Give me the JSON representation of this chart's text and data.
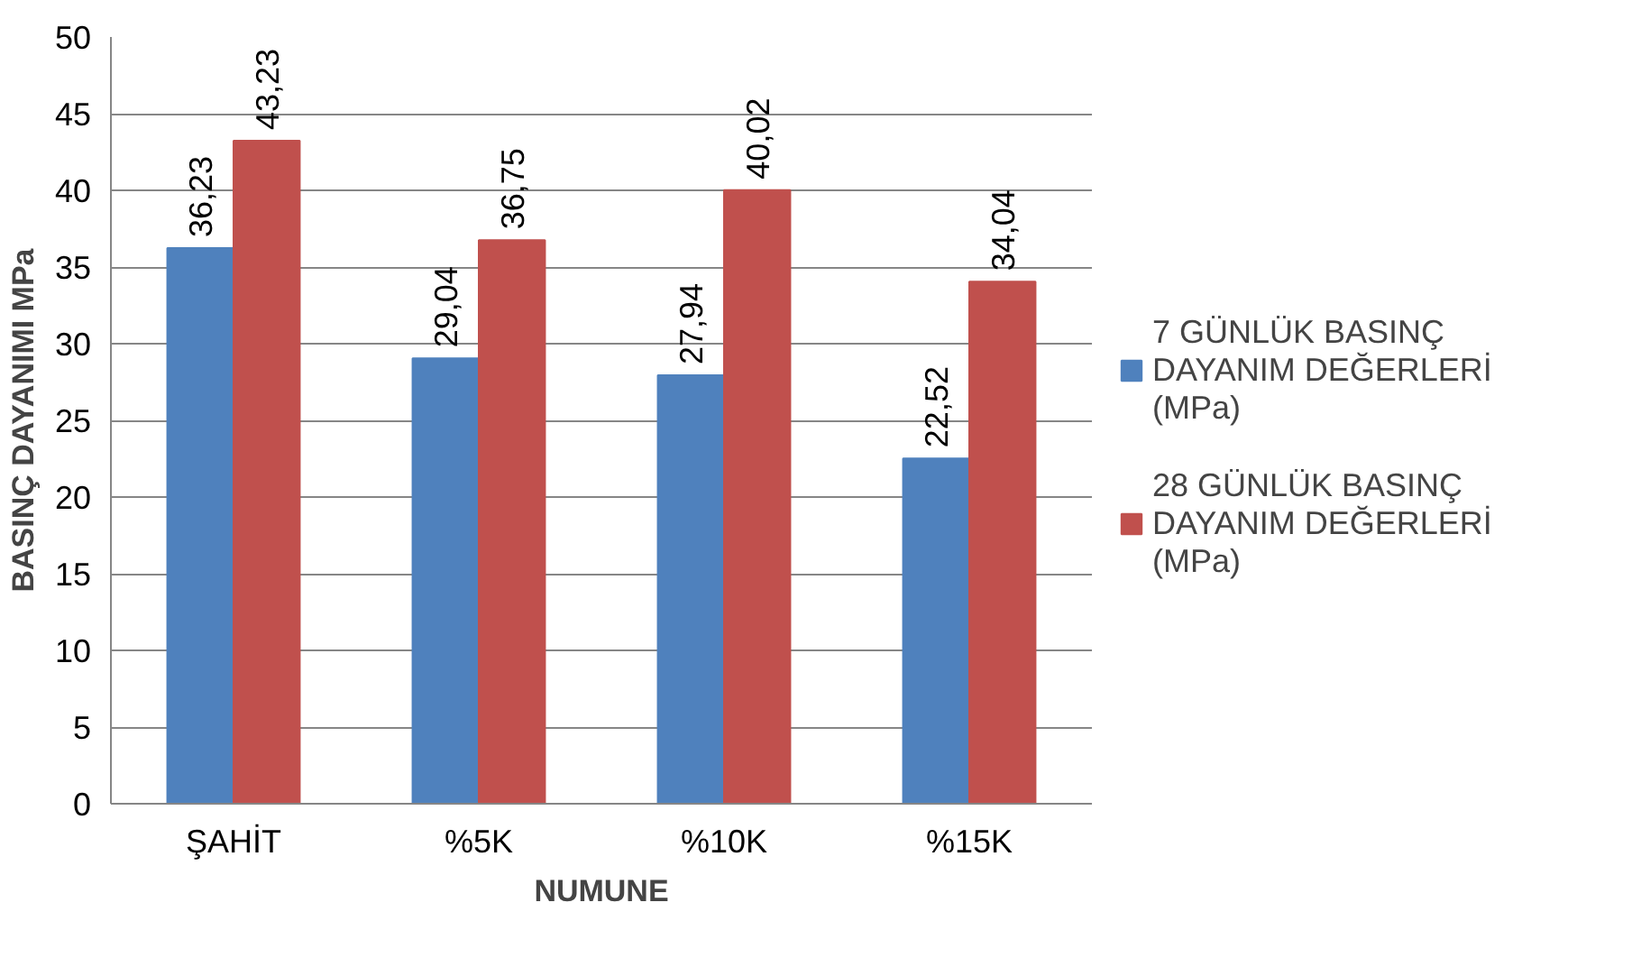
{
  "chart_data": {
    "type": "bar",
    "xlabel": "NUMUNE",
    "ylabel": "BASINÇ DAYANIMI MPa",
    "categories": [
      "ŞAHİT",
      "%5K",
      "%10K",
      "%15K"
    ],
    "series": [
      {
        "name": "7 GÜNLÜK BASINÇ DAYANIM DEĞERLERİ (MPa)",
        "color": "#4f81bd",
        "values": [
          36.23,
          29.04,
          27.94,
          22.52
        ],
        "value_labels": [
          "36,23",
          "29,04",
          "27,94",
          "22,52"
        ]
      },
      {
        "name": "28 GÜNLÜK BASINÇ DAYANIM DEĞERLERİ (MPa)",
        "color": "#c0504d",
        "values": [
          43.23,
          36.75,
          40.02,
          34.04
        ],
        "value_labels": [
          "43,23",
          "36,75",
          "40,02",
          "34,04"
        ]
      }
    ],
    "ylim": [
      0,
      50
    ],
    "yticks": [
      0,
      5,
      10,
      15,
      20,
      25,
      30,
      35,
      40,
      45,
      50
    ],
    "grid": "y",
    "legend": "right"
  }
}
